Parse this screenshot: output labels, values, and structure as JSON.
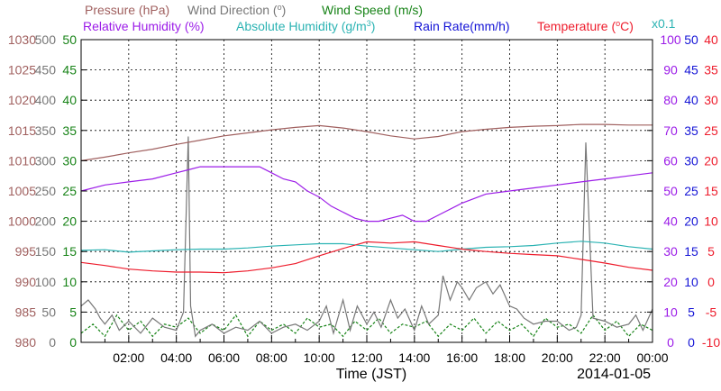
{
  "chart_data": {
    "type": "line",
    "xlabel": "Time (JST)",
    "date_label": "2014-01-05",
    "x_ticks": [
      "02:00",
      "04:00",
      "06:00",
      "08:00",
      "10:00",
      "12:00",
      "14:00",
      "16:00",
      "18:00",
      "20:00",
      "22:00",
      "00:00"
    ],
    "x_range_hours": [
      0,
      24
    ],
    "grid": true,
    "legend": {
      "row1": [
        {
          "id": "pressure",
          "label": "Pressure (hPa)",
          "color": "#a0605f"
        },
        {
          "id": "wind_direction",
          "label": "Wind Direction (",
          "suffix": ")",
          "color": "#777777"
        },
        {
          "id": "wind_speed",
          "label": "Wind Speed (m/s)",
          "color": "#178317"
        }
      ],
      "row2": [
        {
          "id": "relative_humidity",
          "label": "Relative Humidity (%)",
          "color": "#9c1ce8"
        },
        {
          "id": "absolute_humidity",
          "label": "Absolute Humidity (g/m",
          "suffix": ")",
          "color": "#2bb3b3"
        },
        {
          "id": "rain_rate",
          "label": "Rain Rate(mm/h)",
          "color": "#1414d6"
        },
        {
          "id": "temperature",
          "label": "Temperature (",
          "suffix": "C)",
          "color": "#ee1c2c"
        }
      ],
      "multiplier": "x0.1"
    },
    "axes": {
      "pressure": {
        "ticks": [
          "1030",
          "1025",
          "1020",
          "1015",
          "1010",
          "1005",
          "1000",
          "995",
          "990",
          "985",
          "980"
        ],
        "range": [
          980,
          1030
        ],
        "color": "#a0605f"
      },
      "wind_direction": {
        "ticks": [
          "500",
          "450",
          "400",
          "350",
          "300",
          "250",
          "200",
          "150",
          "100",
          "50",
          "0"
        ],
        "range": [
          0,
          500
        ],
        "color": "#777777"
      },
      "wind_speed": {
        "ticks": [
          "50",
          "45",
          "40",
          "35",
          "30",
          "25",
          "20",
          "15",
          "10",
          "5",
          "0"
        ],
        "range": [
          0,
          50
        ],
        "color": "#178317"
      },
      "relative_humidity": {
        "ticks": [
          "100",
          "90",
          "80",
          "70",
          "60",
          "50",
          "40",
          "30",
          "20",
          "10",
          "0"
        ],
        "range": [
          0,
          100
        ],
        "color": "#9c1ce8"
      },
      "rain_rate": {
        "ticks": [
          "50",
          "45",
          "40",
          "35",
          "30",
          "25",
          "20",
          "15",
          "10",
          "5",
          "0"
        ],
        "range": [
          0,
          50
        ],
        "color": "#1414d6"
      },
      "temperature": {
        "ticks": [
          "40",
          "35",
          "30",
          "25",
          "20",
          "15",
          "10",
          "5",
          "0",
          "-5",
          "-10"
        ],
        "range": [
          -10,
          40
        ],
        "color": "#ee1c2c"
      }
    },
    "series": [
      {
        "name": "Pressure (hPa)",
        "axis": "pressure",
        "color": "#a0605f",
        "x": [
          0,
          1,
          2,
          3,
          4,
          5,
          6,
          7,
          8,
          9,
          10,
          11,
          12,
          13,
          14,
          15,
          16,
          17,
          18,
          19,
          20,
          21,
          22,
          23,
          24
        ],
        "y": [
          1010,
          1010.6,
          1011.3,
          1011.9,
          1012.7,
          1013.4,
          1014.1,
          1014.6,
          1015.1,
          1015.5,
          1015.8,
          1015.4,
          1014.8,
          1014.1,
          1013.6,
          1014.0,
          1014.8,
          1015.2,
          1015.5,
          1015.7,
          1015.8,
          1016.0,
          1016.0,
          1015.9,
          1015.9
        ]
      },
      {
        "name": "Relative Humidity (%)",
        "axis": "relative_humidity",
        "color": "#9c1ce8",
        "x": [
          0,
          1,
          2,
          3,
          4,
          4.5,
          5,
          5.5,
          6,
          7,
          7.5,
          8,
          8.5,
          9,
          9.5,
          10,
          10.5,
          11,
          11.5,
          12,
          12.5,
          13,
          13.5,
          14,
          14.5,
          15,
          16,
          17,
          18,
          19,
          20,
          21,
          22,
          23,
          24
        ],
        "y": [
          50,
          52,
          53,
          54,
          56,
          57,
          58,
          58,
          58,
          58,
          58,
          56,
          54,
          53,
          50,
          48,
          45,
          43,
          41,
          40,
          40,
          41,
          42,
          40,
          40,
          42,
          46,
          49,
          50,
          51,
          52,
          53,
          54,
          55,
          56
        ]
      },
      {
        "name": "Absolute Humidity (g/m3)",
        "axis": "rain_rate",
        "color": "#2bb3b3",
        "x": [
          0,
          1,
          2,
          3,
          4,
          5,
          6,
          7,
          8,
          9,
          10,
          11,
          12,
          13,
          14,
          15,
          16,
          17,
          18,
          19,
          20,
          21,
          22,
          23,
          24
        ],
        "y": [
          15.2,
          15.3,
          14.9,
          15.1,
          15.3,
          15.4,
          15.4,
          15.6,
          15.9,
          16.1,
          16.3,
          16.3,
          15.9,
          15.6,
          15.3,
          15.0,
          15.4,
          15.7,
          15.8,
          16.0,
          16.4,
          16.7,
          16.4,
          15.8,
          15.4
        ]
      },
      {
        "name": "Temperature (C)",
        "axis": "temperature",
        "color": "#ee1c2c",
        "x": [
          0,
          1,
          2,
          3,
          4,
          5,
          6,
          7,
          8,
          9,
          10,
          11,
          12,
          13,
          14,
          15,
          16,
          17,
          18,
          19,
          20,
          21,
          22,
          23,
          24
        ],
        "y": [
          3.2,
          2.7,
          2.1,
          1.8,
          1.6,
          1.6,
          1.5,
          1.8,
          2.3,
          3.0,
          4.3,
          5.5,
          6.6,
          6.4,
          6.6,
          6.0,
          5.4,
          5.0,
          4.7,
          4.5,
          4.3,
          3.7,
          3.1,
          2.4,
          1.9
        ]
      },
      {
        "name": "Wind Direction",
        "axis": "wind_direction",
        "color": "#777777",
        "x": [
          0,
          0.3,
          0.6,
          0.8,
          1.0,
          1.3,
          1.6,
          2.0,
          2.5,
          3.0,
          3.5,
          4.0,
          4.3,
          4.5,
          4.6,
          4.8,
          5.0,
          5.5,
          6,
          6.5,
          7,
          7.5,
          8,
          8.5,
          9,
          9.5,
          10,
          10.3,
          10.6,
          11,
          11.3,
          11.6,
          12,
          12.3,
          12.6,
          13,
          13.3,
          13.6,
          14,
          14.3,
          14.6,
          15,
          15.2,
          15.5,
          15.8,
          16,
          16.3,
          16.6,
          17,
          17.3,
          17.6,
          18,
          18.3,
          18.6,
          19,
          19.5,
          20,
          20.5,
          20.8,
          21,
          21.2,
          21.5,
          22,
          22.5,
          23,
          23.3,
          23.6,
          24
        ],
        "y": [
          60,
          70,
          55,
          40,
          30,
          45,
          20,
          35,
          15,
          40,
          25,
          20,
          50,
          340,
          60,
          10,
          20,
          30,
          15,
          25,
          20,
          35,
          15,
          25,
          30,
          20,
          35,
          60,
          15,
          70,
          20,
          60,
          30,
          50,
          25,
          70,
          40,
          55,
          20,
          60,
          30,
          45,
          110,
          70,
          100,
          90,
          70,
          90,
          100,
          80,
          95,
          60,
          55,
          40,
          30,
          35,
          35,
          20,
          25,
          45,
          330,
          40,
          35,
          25,
          30,
          45,
          20,
          55
        ]
      },
      {
        "name": "Wind Speed (m/s)",
        "axis": "wind_speed",
        "color": "#178317",
        "x": [
          0,
          0.5,
          1,
          1.5,
          2,
          2.5,
          3,
          3.5,
          4,
          4.5,
          5,
          5.5,
          6,
          6.5,
          7,
          7.5,
          8,
          8.5,
          9,
          9.5,
          10,
          10.5,
          11,
          11.5,
          12,
          12.5,
          13,
          13.5,
          14,
          14.5,
          15,
          15.5,
          16,
          16.5,
          17,
          17.5,
          18,
          18.5,
          19,
          19.5,
          20,
          20.5,
          21,
          21.5,
          22,
          22.5,
          23,
          23.5,
          24
        ],
        "y": [
          1.5,
          3,
          1,
          4.5,
          2,
          3.5,
          1,
          3,
          2.5,
          4,
          1.5,
          3,
          2,
          4.5,
          1,
          3.5,
          2,
          3,
          1.5,
          4,
          2.5,
          3,
          1,
          3.5,
          2,
          4,
          1.5,
          3,
          2.5,
          3.5,
          1,
          3,
          2,
          4,
          1.5,
          3.5,
          2,
          3,
          1,
          4,
          2.5,
          3,
          1.5,
          4.5,
          2,
          3.5,
          1,
          3,
          2
        ]
      }
    ]
  }
}
